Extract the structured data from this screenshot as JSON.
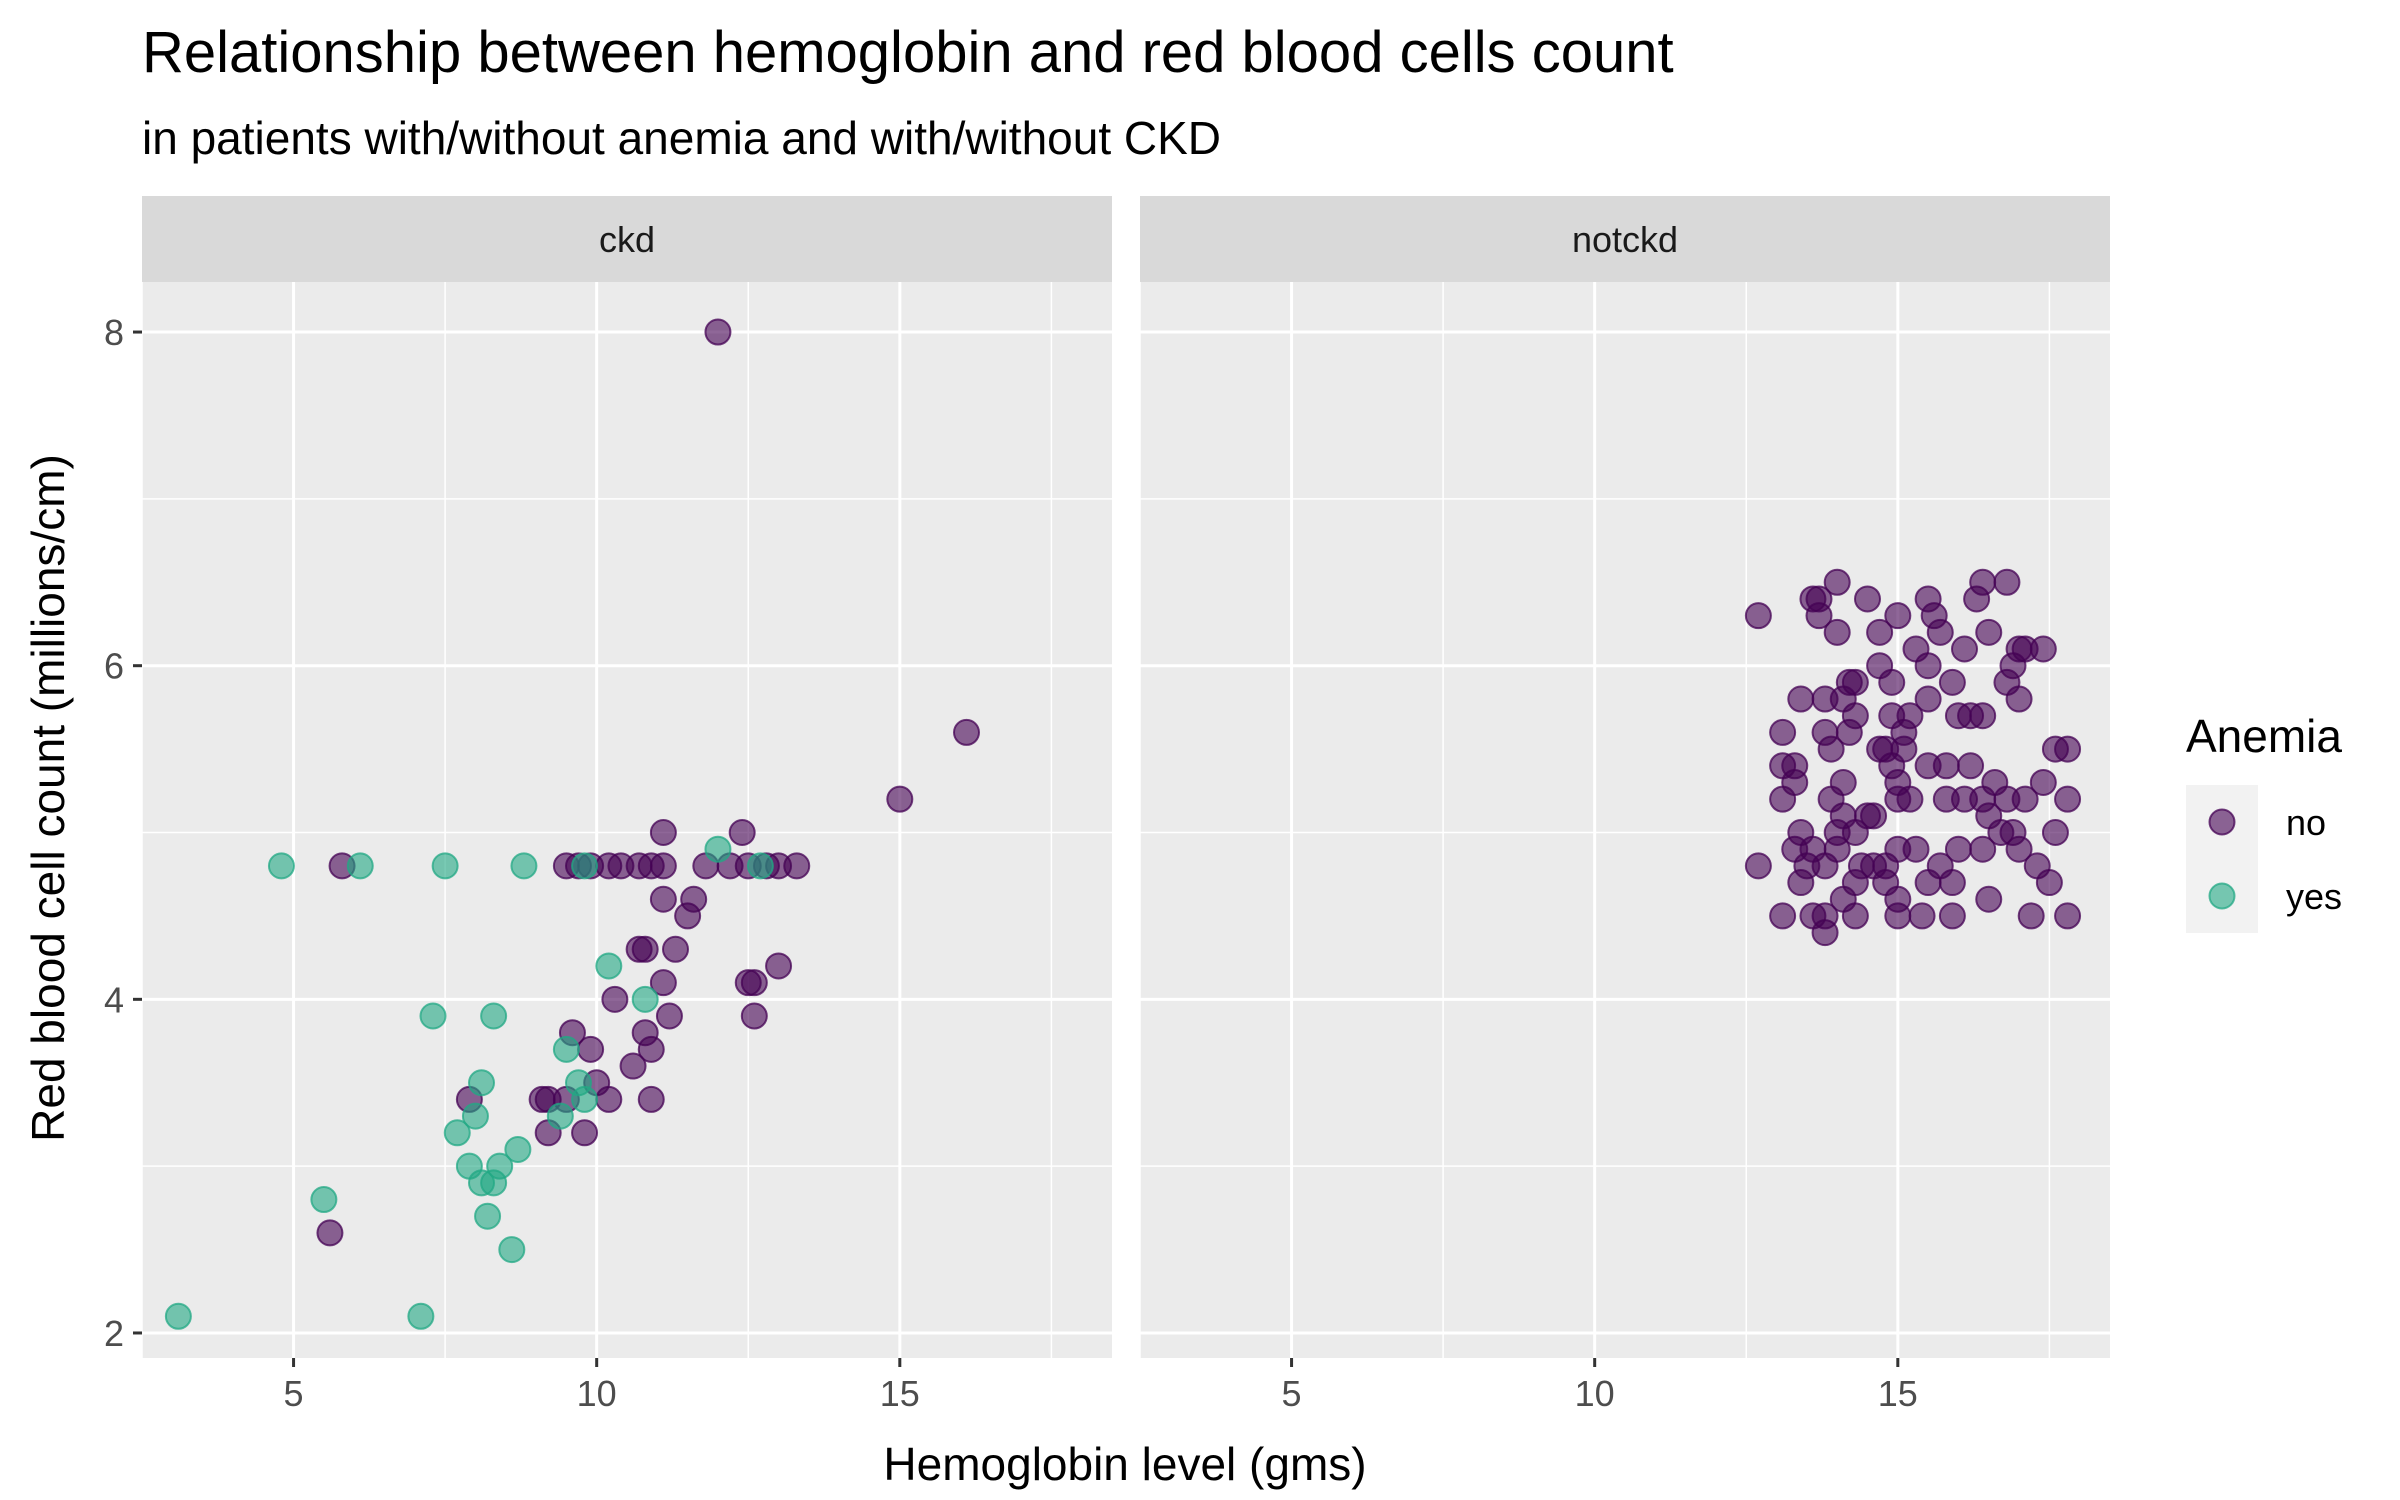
{
  "chart_data": {
    "type": "scatter",
    "title": "Relationship between hemoglobin and red blood cells count",
    "subtitle": "in patients with/without anemia and with/without CKD",
    "xlabel": "Hemoglobin level (gms)",
    "ylabel": "Red blood cell count (millions/cm)",
    "xlim": [
      2.5,
      18.5
    ],
    "ylim": [
      1.85,
      8.3
    ],
    "x_ticks": [
      5,
      10,
      15
    ],
    "y_ticks": [
      2,
      4,
      6,
      8
    ],
    "grid": true,
    "legend": {
      "title": "Anemia",
      "position": "right",
      "entries": [
        {
          "label": "no",
          "color": "#440154"
        },
        {
          "label": "yes",
          "color": "#22A884"
        }
      ]
    },
    "colors": {
      "no": "#440154",
      "yes": "#22A884",
      "panel_bg": "#EBEBEB",
      "strip_bg": "#D9D9D9"
    },
    "point_alpha": 0.6,
    "facets": [
      {
        "label": "ckd",
        "series": [
          {
            "name": "no",
            "points": [
              [
                12.0,
                8.0
              ],
              [
                16.1,
                5.6
              ],
              [
                15.0,
                5.2
              ],
              [
                11.1,
                5.0
              ],
              [
                12.4,
                5.0
              ],
              [
                5.8,
                4.8
              ],
              [
                9.5,
                4.8
              ],
              [
                9.7,
                4.8
              ],
              [
                9.9,
                4.8
              ],
              [
                10.2,
                4.8
              ],
              [
                10.4,
                4.8
              ],
              [
                10.7,
                4.8
              ],
              [
                10.9,
                4.8
              ],
              [
                11.1,
                4.8
              ],
              [
                11.8,
                4.8
              ],
              [
                12.2,
                4.8
              ],
              [
                12.5,
                4.8
              ],
              [
                12.8,
                4.8
              ],
              [
                13.0,
                4.8
              ],
              [
                13.3,
                4.8
              ],
              [
                11.1,
                4.6
              ],
              [
                11.6,
                4.6
              ],
              [
                11.5,
                4.5
              ],
              [
                10.7,
                4.3
              ],
              [
                10.8,
                4.3
              ],
              [
                11.3,
                4.3
              ],
              [
                13.0,
                4.2
              ],
              [
                12.5,
                4.1
              ],
              [
                12.6,
                4.1
              ],
              [
                11.1,
                4.1
              ],
              [
                10.3,
                4.0
              ],
              [
                11.2,
                3.9
              ],
              [
                12.6,
                3.9
              ],
              [
                10.8,
                3.8
              ],
              [
                9.6,
                3.8
              ],
              [
                10.9,
                3.7
              ],
              [
                9.9,
                3.7
              ],
              [
                10.6,
                3.6
              ],
              [
                10.0,
                3.5
              ],
              [
                7.9,
                3.4
              ],
              [
                9.1,
                3.4
              ],
              [
                9.2,
                3.4
              ],
              [
                9.5,
                3.4
              ],
              [
                10.2,
                3.4
              ],
              [
                10.9,
                3.4
              ],
              [
                9.8,
                3.2
              ],
              [
                9.2,
                3.2
              ],
              [
                5.6,
                2.6
              ]
            ]
          },
          {
            "name": "yes",
            "points": [
              [
                4.8,
                4.8
              ],
              [
                6.1,
                4.8
              ],
              [
                7.5,
                4.8
              ],
              [
                8.8,
                4.8
              ],
              [
                9.8,
                4.8
              ],
              [
                12.7,
                4.8
              ],
              [
                12.0,
                4.9
              ],
              [
                10.2,
                4.2
              ],
              [
                10.8,
                4.0
              ],
              [
                7.3,
                3.9
              ],
              [
                8.3,
                3.9
              ],
              [
                9.5,
                3.7
              ],
              [
                9.7,
                3.5
              ],
              [
                8.1,
                3.5
              ],
              [
                9.8,
                3.4
              ],
              [
                8.0,
                3.3
              ],
              [
                9.4,
                3.3
              ],
              [
                7.7,
                3.2
              ],
              [
                8.7,
                3.1
              ],
              [
                7.9,
                3.0
              ],
              [
                8.4,
                3.0
              ],
              [
                8.1,
                2.9
              ],
              [
                8.3,
                2.9
              ],
              [
                5.5,
                2.8
              ],
              [
                8.2,
                2.7
              ],
              [
                8.6,
                2.5
              ],
              [
                3.1,
                2.1
              ],
              [
                7.1,
                2.1
              ]
            ]
          }
        ]
      },
      {
        "label": "notckd",
        "series": [
          {
            "name": "no",
            "points": [
              [
                14.0,
                6.5
              ],
              [
                16.4,
                6.5
              ],
              [
                16.8,
                6.5
              ],
              [
                13.6,
                6.4
              ],
              [
                13.7,
                6.4
              ],
              [
                14.5,
                6.4
              ],
              [
                15.5,
                6.4
              ],
              [
                16.3,
                6.4
              ],
              [
                12.7,
                6.3
              ],
              [
                13.7,
                6.3
              ],
              [
                15.0,
                6.3
              ],
              [
                15.6,
                6.3
              ],
              [
                14.0,
                6.2
              ],
              [
                14.7,
                6.2
              ],
              [
                15.7,
                6.2
              ],
              [
                16.5,
                6.2
              ],
              [
                15.3,
                6.1
              ],
              [
                16.1,
                6.1
              ],
              [
                17.0,
                6.1
              ],
              [
                17.1,
                6.1
              ],
              [
                17.4,
                6.1
              ],
              [
                14.7,
                6.0
              ],
              [
                15.5,
                6.0
              ],
              [
                16.9,
                6.0
              ],
              [
                14.2,
                5.9
              ],
              [
                14.3,
                5.9
              ],
              [
                14.9,
                5.9
              ],
              [
                15.9,
                5.9
              ],
              [
                16.8,
                5.9
              ],
              [
                13.4,
                5.8
              ],
              [
                13.8,
                5.8
              ],
              [
                14.1,
                5.8
              ],
              [
                15.5,
                5.8
              ],
              [
                17.0,
                5.8
              ],
              [
                14.3,
                5.7
              ],
              [
                14.9,
                5.7
              ],
              [
                15.2,
                5.7
              ],
              [
                16.0,
                5.7
              ],
              [
                16.2,
                5.7
              ],
              [
                16.4,
                5.7
              ],
              [
                13.1,
                5.6
              ],
              [
                13.8,
                5.6
              ],
              [
                14.2,
                5.6
              ],
              [
                15.1,
                5.6
              ],
              [
                13.9,
                5.5
              ],
              [
                14.7,
                5.5
              ],
              [
                14.8,
                5.5
              ],
              [
                15.1,
                5.5
              ],
              [
                17.6,
                5.5
              ],
              [
                17.8,
                5.5
              ],
              [
                13.1,
                5.4
              ],
              [
                13.3,
                5.4
              ],
              [
                14.9,
                5.4
              ],
              [
                15.5,
                5.4
              ],
              [
                15.8,
                5.4
              ],
              [
                16.2,
                5.4
              ],
              [
                13.3,
                5.3
              ],
              [
                14.1,
                5.3
              ],
              [
                15.0,
                5.3
              ],
              [
                16.6,
                5.3
              ],
              [
                17.4,
                5.3
              ],
              [
                13.1,
                5.2
              ],
              [
                13.9,
                5.2
              ],
              [
                15.0,
                5.2
              ],
              [
                15.2,
                5.2
              ],
              [
                15.8,
                5.2
              ],
              [
                16.1,
                5.2
              ],
              [
                16.4,
                5.2
              ],
              [
                16.8,
                5.2
              ],
              [
                17.1,
                5.2
              ],
              [
                17.8,
                5.2
              ],
              [
                14.1,
                5.1
              ],
              [
                14.5,
                5.1
              ],
              [
                14.6,
                5.1
              ],
              [
                16.5,
                5.1
              ],
              [
                13.4,
                5.0
              ],
              [
                14.0,
                5.0
              ],
              [
                14.3,
                5.0
              ],
              [
                16.7,
                5.0
              ],
              [
                16.9,
                5.0
              ],
              [
                17.6,
                5.0
              ],
              [
                13.3,
                4.9
              ],
              [
                13.6,
                4.9
              ],
              [
                14.0,
                4.9
              ],
              [
                15.0,
                4.9
              ],
              [
                15.3,
                4.9
              ],
              [
                16.0,
                4.9
              ],
              [
                16.4,
                4.9
              ],
              [
                17.0,
                4.9
              ],
              [
                12.7,
                4.8
              ],
              [
                13.5,
                4.8
              ],
              [
                13.8,
                4.8
              ],
              [
                14.4,
                4.8
              ],
              [
                14.6,
                4.8
              ],
              [
                14.8,
                4.8
              ],
              [
                15.7,
                4.8
              ],
              [
                17.3,
                4.8
              ],
              [
                13.4,
                4.7
              ],
              [
                14.3,
                4.7
              ],
              [
                14.8,
                4.7
              ],
              [
                15.5,
                4.7
              ],
              [
                15.9,
                4.7
              ],
              [
                17.5,
                4.7
              ],
              [
                14.1,
                4.6
              ],
              [
                15.0,
                4.6
              ],
              [
                16.5,
                4.6
              ],
              [
                13.1,
                4.5
              ],
              [
                13.6,
                4.5
              ],
              [
                13.8,
                4.5
              ],
              [
                14.3,
                4.5
              ],
              [
                15.0,
                4.5
              ],
              [
                15.4,
                4.5
              ],
              [
                15.9,
                4.5
              ],
              [
                17.2,
                4.5
              ],
              [
                17.8,
                4.5
              ],
              [
                13.8,
                4.4
              ]
            ]
          }
        ]
      }
    ]
  }
}
